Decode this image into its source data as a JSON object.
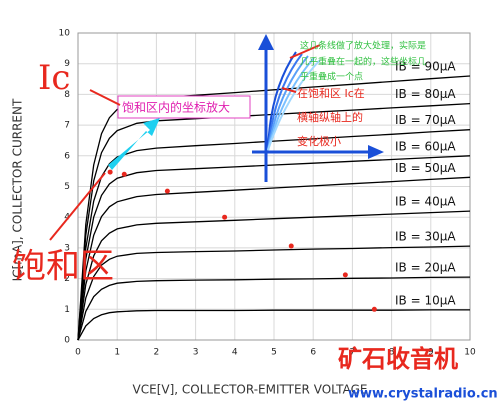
{
  "chart_data": {
    "type": "line",
    "xlabel": "VCE[V], COLLECTOR-EMITTER VOLTAGE",
    "ylabel": "IC[mA], COLLECTOR CURRENT",
    "x": [
      0,
      0.2,
      0.4,
      0.6,
      0.8,
      1,
      1.5,
      2,
      3,
      4,
      5,
      6,
      7,
      8,
      9,
      10
    ],
    "xlim": [
      0,
      10
    ],
    "xticks": [
      0,
      1,
      2,
      3,
      4,
      5,
      6,
      7,
      8,
      9,
      10
    ],
    "ylim": [
      0,
      10
    ],
    "yticks": [
      0,
      1,
      2,
      3,
      4,
      5,
      6,
      7,
      8,
      9,
      10
    ],
    "grid": true,
    "series": [
      {
        "name": "IB = 90μA",
        "color": "#000000",
        "values": [
          0,
          3.77,
          5.7,
          6.72,
          7.24,
          7.51,
          7.78,
          7.88,
          7.97,
          8.06,
          8.15,
          8.24,
          8.33,
          8.42,
          8.51,
          8.6
        ]
      },
      {
        "name": "IB = 80μA",
        "color": "#000000",
        "values": [
          0,
          3.42,
          5.18,
          6.1,
          6.57,
          6.82,
          7.06,
          7.14,
          7.21,
          7.28,
          7.35,
          7.42,
          7.49,
          7.56,
          7.63,
          7.7
        ]
      },
      {
        "name": "IB = 70μA",
        "color": "#000000",
        "values": [
          0,
          2.99,
          4.52,
          5.32,
          5.74,
          5.96,
          6.17,
          6.25,
          6.33,
          6.4,
          6.48,
          6.55,
          6.63,
          6.7,
          6.78,
          6.85
        ]
      },
      {
        "name": "IB = 60μA",
        "color": "#000000",
        "values": [
          0,
          2.64,
          4.0,
          4.71,
          5.08,
          5.27,
          5.45,
          5.52,
          5.58,
          5.64,
          5.7,
          5.76,
          5.82,
          5.88,
          5.94,
          6.0
        ]
      },
      {
        "name": "IB = 50μA",
        "color": "#000000",
        "values": [
          0,
          2.25,
          3.41,
          4.02,
          4.34,
          4.5,
          4.67,
          4.74,
          4.81,
          4.88,
          4.95,
          5.02,
          5.09,
          5.16,
          5.23,
          5.3
        ]
      },
      {
        "name": "IB = 40μA",
        "color": "#000000",
        "values": [
          0,
          1.81,
          2.74,
          3.23,
          3.48,
          3.62,
          3.75,
          3.8,
          3.85,
          3.9,
          3.95,
          4.0,
          4.05,
          4.1,
          4.15,
          4.2
        ]
      },
      {
        "name": "IB = 30μA",
        "color": "#000000",
        "values": [
          0,
          1.37,
          2.07,
          2.44,
          2.63,
          2.73,
          2.82,
          2.85,
          2.88,
          2.9,
          2.93,
          2.96,
          2.98,
          3.01,
          3.03,
          3.06
        ]
      },
      {
        "name": "IB = 20μA",
        "color": "#000000",
        "values": [
          0,
          0.93,
          1.41,
          1.65,
          1.78,
          1.85,
          1.91,
          1.93,
          1.95,
          1.96,
          1.98,
          1.99,
          2.01,
          2.02,
          2.04,
          2.05
        ]
      },
      {
        "name": "IB = 10μA",
        "color": "#000000",
        "values": [
          0,
          0.46,
          0.7,
          0.82,
          0.89,
          0.92,
          0.95,
          0.96,
          0.96,
          0.96,
          0.97,
          0.97,
          0.97,
          0.97,
          0.98,
          0.98
        ]
      }
    ],
    "markers": {
      "color": "#e8281e",
      "x": [
        0.82,
        1.18,
        2.28,
        3.74,
        5.44,
        6.82,
        7.56
      ],
      "y": [
        5.47,
        5.4,
        4.85,
        4.0,
        3.06,
        2.12,
        1.0
      ]
    },
    "annotations": {
      "ic": "Ic",
      "zoom_note": "饱和区内的坐标放大",
      "saturation": "饱和区",
      "green_note": [
        "这几条线做了放大处理，实际是",
        "几乎重叠在一起的，这些坐标几",
        "乎重叠成一个点"
      ],
      "red_note": [
        "在饱和区 Ic在",
        "横轴纵轴上的",
        "变化极小"
      ],
      "watermark": "矿石收音机",
      "watermark_url": "www.crystalradio.cn"
    }
  }
}
